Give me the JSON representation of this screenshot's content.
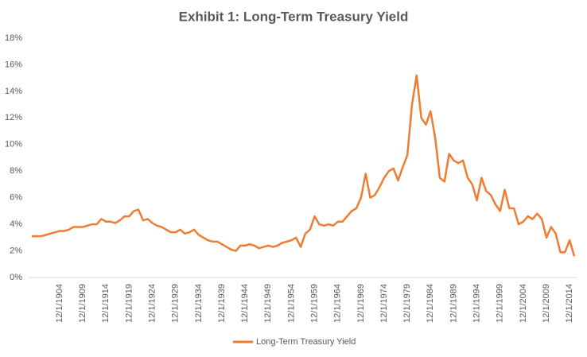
{
  "chart_data": {
    "type": "line",
    "title": "Exhibit 1: Long-Term Treasury Yield",
    "categories": [
      null,
      null,
      null,
      null,
      null,
      null,
      "12/1/1904",
      null,
      null,
      null,
      null,
      "12/1/1909",
      null,
      null,
      null,
      null,
      "12/1/1914",
      null,
      null,
      null,
      null,
      "12/1/1919",
      null,
      null,
      null,
      null,
      "12/1/1924",
      null,
      null,
      null,
      null,
      "12/1/1929",
      null,
      null,
      null,
      null,
      "12/1/1934",
      null,
      null,
      null,
      null,
      "12/1/1939",
      null,
      null,
      null,
      null,
      "12/1/1944",
      null,
      null,
      null,
      null,
      "12/1/1949",
      null,
      null,
      null,
      null,
      "12/1/1954",
      null,
      null,
      null,
      null,
      "12/1/1959",
      null,
      null,
      null,
      null,
      "12/1/1964",
      null,
      null,
      null,
      null,
      "12/1/1969",
      null,
      null,
      null,
      null,
      "12/1/1974",
      null,
      null,
      null,
      null,
      "12/1/1979",
      null,
      null,
      null,
      null,
      "12/1/1984",
      null,
      null,
      null,
      null,
      "12/1/1989",
      null,
      null,
      null,
      null,
      "12/1/1994",
      null,
      null,
      null,
      null,
      "12/1/1999",
      null,
      null,
      null,
      null,
      "12/1/2004",
      null,
      null,
      null,
      null,
      "12/1/2009",
      null,
      null,
      null,
      null,
      "12/1/2014",
      null
    ],
    "series": [
      {
        "name": "Long-Term Treasury Yield",
        "color": "#ed7d31",
        "values": [
          3.1,
          3.1,
          3.1,
          3.2,
          3.3,
          3.4,
          3.5,
          3.5,
          3.6,
          3.8,
          3.8,
          3.8,
          3.9,
          4.0,
          4.0,
          4.4,
          4.2,
          4.2,
          4.1,
          4.3,
          4.6,
          4.6,
          5.0,
          5.1,
          4.3,
          4.4,
          4.1,
          3.9,
          3.8,
          3.6,
          3.4,
          3.4,
          3.6,
          3.3,
          3.4,
          3.6,
          3.2,
          3.0,
          2.8,
          2.7,
          2.7,
          2.5,
          2.3,
          2.1,
          2.0,
          2.4,
          2.4,
          2.5,
          2.4,
          2.2,
          2.3,
          2.4,
          2.3,
          2.4,
          2.6,
          2.7,
          2.8,
          3.0,
          2.3,
          3.3,
          3.6,
          4.6,
          4.0,
          3.9,
          4.0,
          3.9,
          4.2,
          4.2,
          4.6,
          5.0,
          5.2,
          6.0,
          7.8,
          6.0,
          6.2,
          6.8,
          7.5,
          8.0,
          8.2,
          7.3,
          8.3,
          9.2,
          13.0,
          15.2,
          12.0,
          11.5,
          12.5,
          10.5,
          7.5,
          7.2,
          9.3,
          8.8,
          8.6,
          8.8,
          7.5,
          7.0,
          5.8,
          7.5,
          6.5,
          6.2,
          5.5,
          5.0,
          6.6,
          5.2,
          5.2,
          4.0,
          4.2,
          4.6,
          4.4,
          4.8,
          4.4,
          3.0,
          3.8,
          3.3,
          1.9,
          1.9,
          2.8,
          1.6
        ]
      }
    ],
    "ylim": [
      0,
      18
    ],
    "yticks": [
      {
        "value": 0,
        "label": "0%"
      },
      {
        "value": 2,
        "label": "2%"
      },
      {
        "value": 4,
        "label": "4%"
      },
      {
        "value": 6,
        "label": "6%"
      },
      {
        "value": 8,
        "label": "8%"
      },
      {
        "value": 10,
        "label": "10%"
      },
      {
        "value": 12,
        "label": "12%"
      },
      {
        "value": 14,
        "label": "14%"
      },
      {
        "value": 16,
        "label": "16%"
      },
      {
        "value": 18,
        "label": "18%"
      }
    ],
    "grid": false,
    "legend": "bottom"
  }
}
